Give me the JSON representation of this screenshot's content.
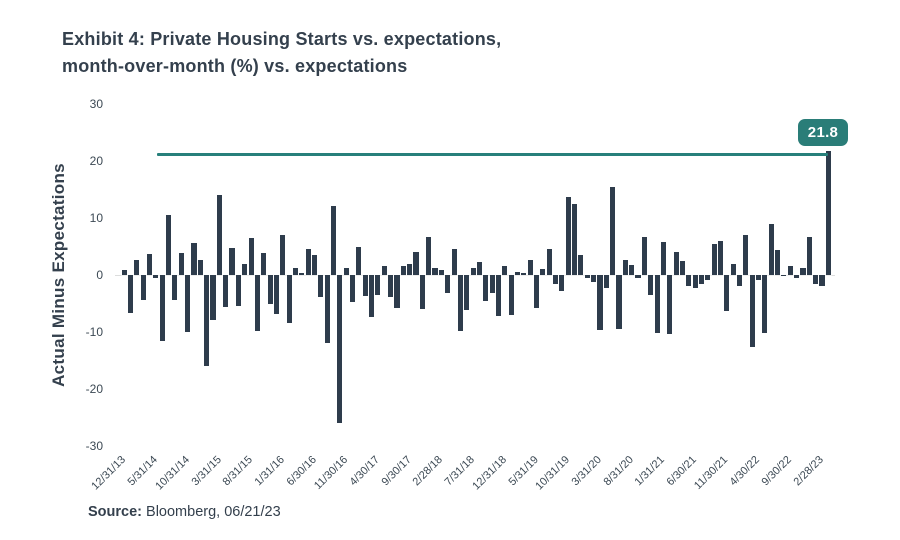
{
  "title": {
    "line1": "Exhibit 4: Private Housing Starts vs. expectations,",
    "line2": "month-over-month (%) vs. expectations"
  },
  "source": {
    "label": "Source:",
    "text": " Bloomberg, 06/21/23"
  },
  "colors": {
    "bar": "#2e3c4c",
    "annotation_line": "#27807b",
    "annotation_box": "#2a7d78",
    "text_dark": "#34404d",
    "tick_text": "#3c4954",
    "zero_line": "#dcdddd"
  },
  "chart_data": {
    "type": "bar",
    "title": "Exhibit 4: Private Housing Starts vs. expectations, month-over-month (%) vs. expectations",
    "xlabel": "",
    "ylabel": "Actual Minus Expectations",
    "ylim": [
      -30,
      30
    ],
    "yticks": [
      30,
      20,
      10,
      0,
      -10,
      -20,
      -30
    ],
    "grid": "off",
    "legend": "none",
    "bar_color": "#2e3c4c",
    "x_tick_every": 5,
    "x_tick_labels": [
      "12/31/13",
      "5/31/14",
      "10/31/14",
      "3/31/15",
      "8/31/15",
      "1/31/16",
      "6/30/16",
      "11/30/16",
      "4/30/17",
      "9/30/17",
      "2/28/18",
      "7/31/18",
      "12/31/18",
      "5/31/19",
      "10/31/19",
      "3/31/20",
      "8/31/20",
      "1/31/21",
      "6/30/21",
      "11/30/21",
      "4/30/22",
      "9/30/22",
      "2/28/23"
    ],
    "values": [
      0.8,
      -6.6,
      2.7,
      -4.4,
      3.7,
      -0.5,
      -11.5,
      10.6,
      -4.3,
      3.9,
      -10,
      5.7,
      2.6,
      -16,
      -7.9,
      14,
      -5.6,
      4.7,
      -5.5,
      2,
      6.5,
      -9.9,
      3.9,
      -5,
      -6.8,
      7.1,
      -8.5,
      1.2,
      0.4,
      4.6,
      3.5,
      -3.8,
      -12,
      12.1,
      -26,
      1.3,
      -4.7,
      5,
      -3.7,
      -7.3,
      -3.5,
      1.5,
      -3.8,
      -5.8,
      1.6,
      2,
      4.1,
      -6,
      6.6,
      1.3,
      0.8,
      -3.2,
      4.6,
      -9.9,
      -6.1,
      1.2,
      2.2,
      -4.5,
      -3.2,
      -7.2,
      1.6,
      -7,
      0.6,
      0.4,
      2.6,
      -5.8,
      1,
      4.5,
      -1.5,
      -2.8,
      13.7,
      12.5,
      3.5,
      -0.6,
      -1.2,
      -9.6,
      -2.2,
      15.4,
      -9.4,
      2.6,
      1.7,
      -0.5,
      6.7,
      -3.5,
      -10.1,
      5.8,
      -10.4,
      4,
      2.5,
      -1.9,
      -2.2,
      -1.5,
      -0.9,
      5.4,
      6,
      -6.4,
      2,
      -1.9,
      7,
      -12.6,
      -0.9,
      -10.2,
      9,
      4.3,
      -0.2,
      1.5,
      -0.6,
      1.2,
      6.7,
      -1.5,
      -2,
      21.8
    ],
    "annotation": {
      "label": "21.8",
      "line_value": 21.2,
      "line_color": "#27807b",
      "box_color": "#2a7d78"
    }
  }
}
